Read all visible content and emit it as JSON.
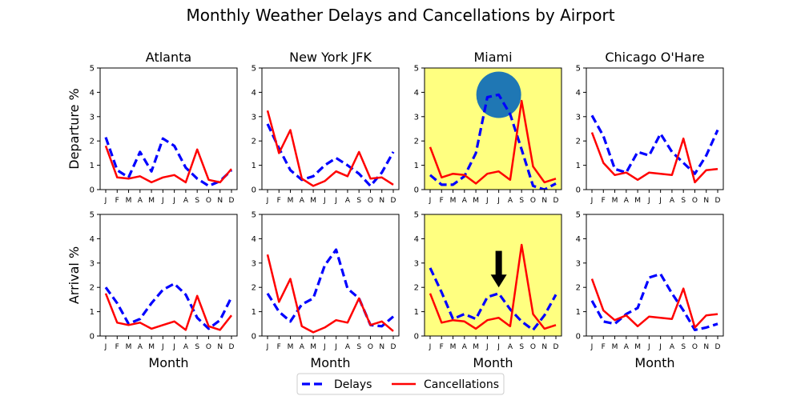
{
  "chart_data": {
    "type": "line",
    "title": "Monthly Weather Delays and Cancellations by Airport",
    "x_categories": [
      "J",
      "F",
      "M",
      "A",
      "M",
      "J",
      "J",
      "A",
      "S",
      "O",
      "N",
      "D"
    ],
    "xlabel": "Month",
    "ylim": [
      0,
      5
    ],
    "yticks": [
      0,
      1,
      2,
      3,
      4,
      5
    ],
    "row_labels": [
      "Departure %",
      "Arrival %"
    ],
    "series_styles": {
      "delays": {
        "color": "#0000ff",
        "dash": "dashed"
      },
      "cancellations": {
        "color": "#ff0000",
        "dash": "solid"
      }
    },
    "highlight_color": "#ffff80",
    "legend": {
      "position": "bottom-center",
      "entries": [
        "Delays",
        "Cancellations"
      ]
    },
    "panels": [
      {
        "airport": "Atlanta",
        "metric": "Departure %",
        "highlight": false,
        "delays": [
          2.15,
          0.8,
          0.5,
          1.55,
          0.75,
          2.1,
          1.8,
          0.9,
          0.45,
          0.15,
          0.35,
          0.8
        ],
        "cancellations": [
          1.8,
          0.5,
          0.45,
          0.55,
          0.3,
          0.5,
          0.6,
          0.3,
          1.65,
          0.4,
          0.3,
          0.85
        ]
      },
      {
        "airport": "New York JFK",
        "metric": "Departure %",
        "highlight": false,
        "delays": [
          2.7,
          1.7,
          0.8,
          0.4,
          0.55,
          1.0,
          1.3,
          1.0,
          0.65,
          0.15,
          0.7,
          1.55
        ],
        "cancellations": [
          3.25,
          1.5,
          2.45,
          0.45,
          0.15,
          0.35,
          0.75,
          0.55,
          1.55,
          0.45,
          0.5,
          0.2
        ]
      },
      {
        "airport": "Miami",
        "metric": "Departure %",
        "highlight": true,
        "annotation": {
          "type": "circle",
          "month_index": 6,
          "value": 3.9
        },
        "delays": [
          0.6,
          0.2,
          0.2,
          0.55,
          1.5,
          3.8,
          3.9,
          3.1,
          1.65,
          0.15,
          0.0,
          0.25
        ],
        "cancellations": [
          1.75,
          0.5,
          0.65,
          0.6,
          0.25,
          0.65,
          0.75,
          0.4,
          3.65,
          0.95,
          0.3,
          0.45
        ]
      },
      {
        "airport": "Chicago O'Hare",
        "metric": "Departure %",
        "highlight": false,
        "delays": [
          3.05,
          2.2,
          0.85,
          0.7,
          1.55,
          1.4,
          2.3,
          1.55,
          1.1,
          0.65,
          1.4,
          2.45
        ],
        "cancellations": [
          2.35,
          1.1,
          0.6,
          0.7,
          0.4,
          0.7,
          0.65,
          0.6,
          2.1,
          0.3,
          0.8,
          0.85
        ]
      },
      {
        "airport": "Atlanta",
        "metric": "Arrival %",
        "highlight": false,
        "delays": [
          2.0,
          1.35,
          0.5,
          0.7,
          1.35,
          1.9,
          2.15,
          1.7,
          0.75,
          0.3,
          0.65,
          1.6
        ],
        "cancellations": [
          1.75,
          0.55,
          0.45,
          0.55,
          0.3,
          0.45,
          0.6,
          0.25,
          1.65,
          0.4,
          0.25,
          0.85
        ]
      },
      {
        "airport": "New York JFK",
        "metric": "Arrival %",
        "highlight": false,
        "delays": [
          1.75,
          1.0,
          0.6,
          1.3,
          1.55,
          2.9,
          3.55,
          1.95,
          1.55,
          0.45,
          0.4,
          0.8
        ],
        "cancellations": [
          3.35,
          1.4,
          2.35,
          0.4,
          0.15,
          0.35,
          0.65,
          0.55,
          1.55,
          0.45,
          0.6,
          0.2
        ]
      },
      {
        "airport": "Miami",
        "metric": "Arrival %",
        "highlight": true,
        "annotation": {
          "type": "arrow",
          "month_index": 6,
          "from_value": 3.5,
          "to_value": 2.0
        },
        "delays": [
          2.8,
          1.8,
          0.7,
          0.9,
          0.7,
          1.6,
          1.75,
          1.1,
          0.6,
          0.25,
          0.85,
          1.7
        ],
        "cancellations": [
          1.75,
          0.55,
          0.65,
          0.6,
          0.3,
          0.65,
          0.75,
          0.4,
          3.75,
          0.9,
          0.3,
          0.45
        ]
      },
      {
        "airport": "Chicago O'Hare",
        "metric": "Arrival %",
        "highlight": false,
        "delays": [
          1.45,
          0.6,
          0.5,
          0.9,
          1.15,
          2.4,
          2.55,
          1.75,
          1.05,
          0.25,
          0.35,
          0.5
        ],
        "cancellations": [
          2.35,
          1.05,
          0.65,
          0.85,
          0.4,
          0.8,
          0.75,
          0.7,
          1.95,
          0.35,
          0.85,
          0.9
        ]
      }
    ]
  }
}
